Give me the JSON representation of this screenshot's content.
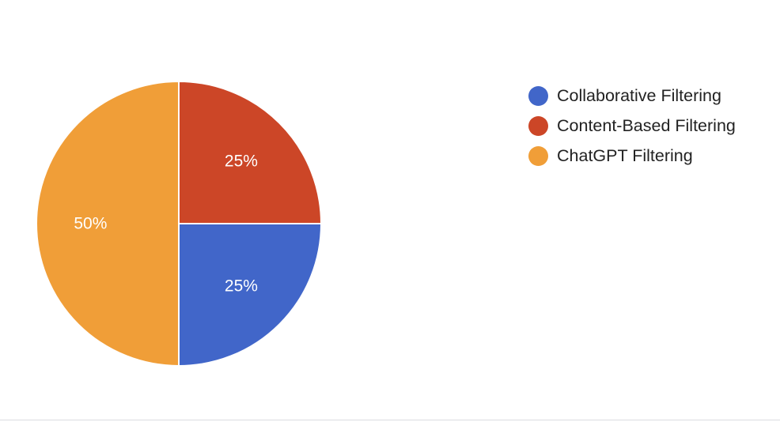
{
  "chart_data": {
    "type": "pie",
    "title": "",
    "legend_position": "right",
    "slices": [
      {
        "label": "Collaborative Filtering",
        "value": 25,
        "display": "25%",
        "color": "#4166c9"
      },
      {
        "label": "Content-Based Filtering",
        "value": 25,
        "display": "25%",
        "color": "#cc4627"
      },
      {
        "label": "ChatGPT Filtering",
        "value": 50,
        "display": "50%",
        "color": "#f09e38"
      }
    ]
  }
}
